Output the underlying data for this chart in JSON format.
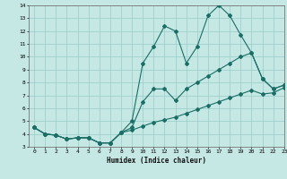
{
  "xlabel": "Humidex (Indice chaleur)",
  "bg_color": "#c5e8e5",
  "grid_color": "#9ecfcc",
  "line_color": "#1a6e65",
  "x": [
    0,
    1,
    2,
    3,
    4,
    5,
    6,
    7,
    8,
    9,
    10,
    11,
    12,
    13,
    14,
    15,
    16,
    17,
    18,
    19,
    20,
    21,
    22,
    23
  ],
  "line_high": [
    4.5,
    4.0,
    3.9,
    3.6,
    3.7,
    3.7,
    3.3,
    3.3,
    4.1,
    5.0,
    9.5,
    10.8,
    12.4,
    12.0,
    9.5,
    10.8,
    13.2,
    14.0,
    13.2,
    11.7,
    10.3,
    8.3,
    7.5,
    7.8
  ],
  "line_mid": [
    4.5,
    4.0,
    3.9,
    3.6,
    3.7,
    3.7,
    3.3,
    3.3,
    4.1,
    4.5,
    6.5,
    7.5,
    7.5,
    6.6,
    7.5,
    8.0,
    8.5,
    9.0,
    9.5,
    10.0,
    10.3,
    8.3,
    7.5,
    7.8
  ],
  "line_low": [
    4.5,
    4.0,
    3.9,
    3.6,
    3.7,
    3.7,
    3.3,
    3.3,
    4.1,
    4.3,
    4.6,
    4.9,
    5.1,
    5.3,
    5.6,
    5.9,
    6.2,
    6.5,
    6.8,
    7.1,
    7.4,
    7.1,
    7.2,
    7.6
  ],
  "ylim": [
    3,
    14
  ],
  "xlim": [
    -0.5,
    23
  ],
  "yticks": [
    3,
    4,
    5,
    6,
    7,
    8,
    9,
    10,
    11,
    12,
    13,
    14
  ],
  "xticks": [
    0,
    1,
    2,
    3,
    4,
    5,
    6,
    7,
    8,
    9,
    10,
    11,
    12,
    13,
    14,
    15,
    16,
    17,
    18,
    19,
    20,
    21,
    22,
    23
  ]
}
